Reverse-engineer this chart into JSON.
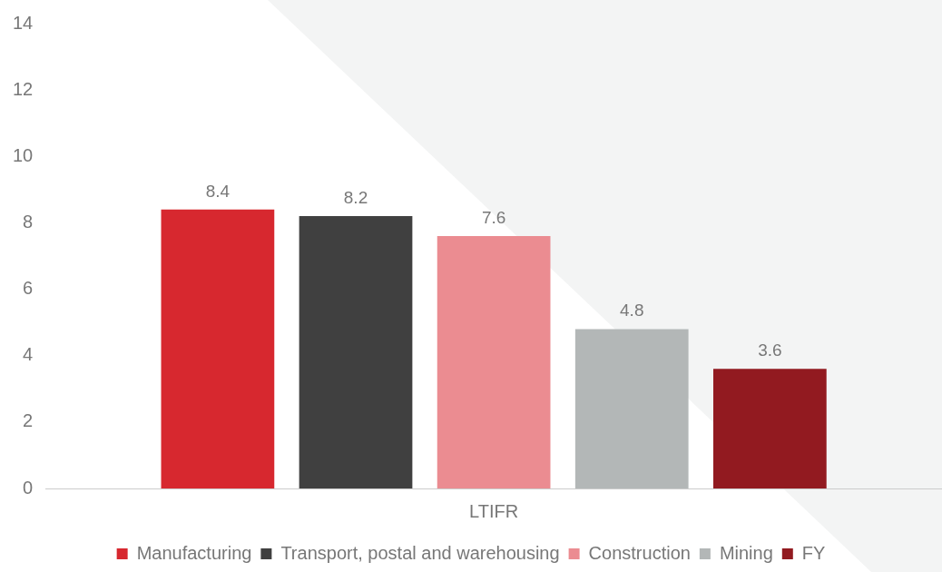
{
  "chart_data": {
    "type": "bar",
    "categories": [
      "LTIFR"
    ],
    "series": [
      {
        "name": "Manufacturing",
        "color": "#d7282f",
        "values": [
          8.4
        ]
      },
      {
        "name": "Transport, postal and warehousing",
        "color": "#404040",
        "values": [
          8.2
        ]
      },
      {
        "name": "Construction",
        "color": "#eb8c91",
        "values": [
          7.6
        ]
      },
      {
        "name": "Mining",
        "color": "#b3b7b7",
        "values": [
          4.8
        ]
      },
      {
        "name": "FY",
        "color": "#921a20",
        "values": [
          3.6
        ]
      }
    ],
    "ylim": [
      0,
      14
    ],
    "yticks": [
      0,
      2,
      4,
      6,
      8,
      10,
      12,
      14
    ],
    "grid": false,
    "data_labels": true,
    "legend": "bottom"
  }
}
